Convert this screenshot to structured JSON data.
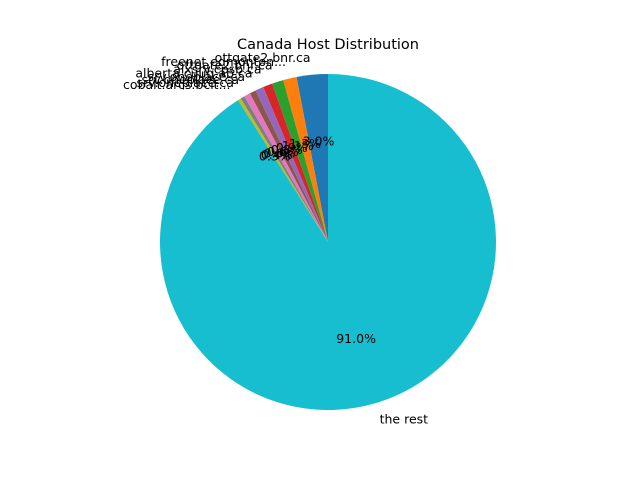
{
  "chart_data": {
    "type": "pie",
    "title": "Canada Host Distribution",
    "start_angle_deg": 90,
    "direction": "counterclockwise",
    "slices": [
      {
        "label": "ottgate2.bnr.ca",
        "value": 3.0,
        "pct_label": "3.0%",
        "color": "#1f77b4"
      },
      {
        "label": "freenet.edmonton...",
        "value": 1.3,
        "pct_label": "1.3%",
        "color": "#ff7f0e"
      },
      {
        "label": "ottgate2.bnr.ca",
        "value": 1.1,
        "pct_label": "1.1%",
        "color": "#2ca02c"
      },
      {
        "label": "aixsrv.cpsb.ca",
        "value": 0.9,
        "pct_label": "0.9%",
        "color": "#d62728"
      },
      {
        "label": "alberta.cuug.ab.ca",
        "value": 0.8,
        "pct_label": "0.8%",
        "color": "#9467bd"
      },
      {
        "label": "srv.oneplace.ca",
        "value": 0.6,
        "pct_label": "0.6%",
        "color": "#8c564b"
      },
      {
        "label": "srv.oneplace.ca",
        "value": 0.6,
        "pct_label": "0.6%",
        "color": "#e377c2"
      },
      {
        "label": "srv.oneplace.ca",
        "value": 0.4,
        "pct_label": "0.4%",
        "color": "#7f7f7f"
      },
      {
        "label": "cobalt.arcs.bcit...",
        "value": 0.3,
        "pct_label": "0.3%",
        "color": "#bcbd22"
      },
      {
        "label": "the rest",
        "value": 91.0,
        "pct_label": "91.0%",
        "color": "#17becf"
      }
    ]
  }
}
